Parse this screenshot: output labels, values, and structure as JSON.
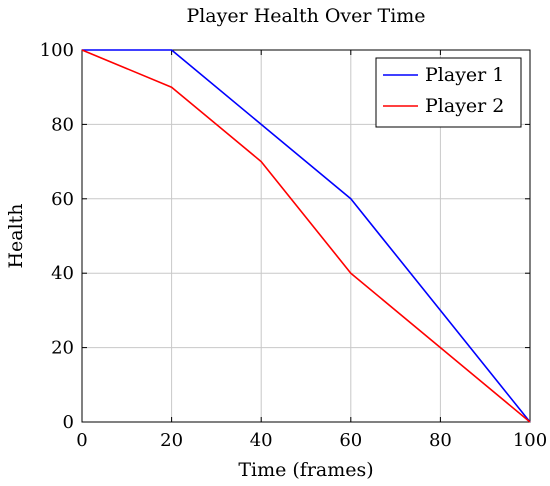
{
  "chart_data": {
    "type": "line",
    "title": "Player Health Over Time",
    "xlabel": "Time (frames)",
    "ylabel": "Health",
    "xlim": [
      0,
      100
    ],
    "ylim": [
      0,
      100
    ],
    "xticks": [
      0,
      20,
      40,
      60,
      80,
      100
    ],
    "yticks": [
      0,
      20,
      40,
      60,
      80,
      100
    ],
    "grid": true,
    "legend_position": "top-right",
    "series": [
      {
        "name": "Player 1",
        "color": "#0000ff",
        "x": [
          0,
          20,
          40,
          60,
          80,
          100
        ],
        "y": [
          100,
          100,
          80,
          60,
          30,
          0
        ]
      },
      {
        "name": "Player 2",
        "color": "#ff0000",
        "x": [
          0,
          20,
          40,
          60,
          80,
          100
        ],
        "y": [
          100,
          90,
          70,
          40,
          20,
          0
        ]
      }
    ]
  }
}
